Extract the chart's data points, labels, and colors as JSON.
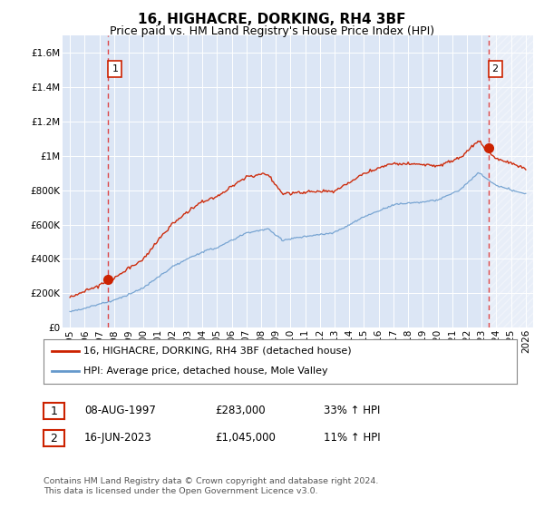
{
  "title": "16, HIGHACRE, DORKING, RH4 3BF",
  "subtitle": "Price paid vs. HM Land Registry's House Price Index (HPI)",
  "xlim": [
    1994.5,
    2026.5
  ],
  "ylim": [
    0,
    1700000
  ],
  "yticks": [
    0,
    200000,
    400000,
    600000,
    800000,
    1000000,
    1200000,
    1400000,
    1600000
  ],
  "ytick_labels": [
    "£0",
    "£200K",
    "£400K",
    "£600K",
    "£800K",
    "£1M",
    "£1.2M",
    "£1.4M",
    "£1.6M"
  ],
  "xticks": [
    1995,
    1996,
    1997,
    1998,
    1999,
    2000,
    2001,
    2002,
    2003,
    2004,
    2005,
    2006,
    2007,
    2008,
    2009,
    2010,
    2011,
    2012,
    2013,
    2014,
    2015,
    2016,
    2017,
    2018,
    2019,
    2020,
    2021,
    2022,
    2023,
    2024,
    2025,
    2026
  ],
  "background_color": "#dce6f5",
  "grid_color": "#ffffff",
  "line_color_hpi": "#6699cc",
  "line_color_price": "#cc2200",
  "sale1_year": 1997.6,
  "sale1_price": 283000,
  "sale2_year": 2023.45,
  "sale2_price": 1045000,
  "vline_color": "#dd3333",
  "hatch_color": "#cccccc",
  "legend_line1": "16, HIGHACRE, DORKING, RH4 3BF (detached house)",
  "legend_line2": "HPI: Average price, detached house, Mole Valley",
  "table_row1": [
    "1",
    "08-AUG-1997",
    "£283,000",
    "33% ↑ HPI"
  ],
  "table_row2": [
    "2",
    "16-JUN-2023",
    "£1,045,000",
    "11% ↑ HPI"
  ],
  "footnote": "Contains HM Land Registry data © Crown copyright and database right 2024.\nThis data is licensed under the Open Government Licence v3.0.",
  "title_fontsize": 11,
  "subtitle_fontsize": 9,
  "tick_fontsize": 7.5
}
